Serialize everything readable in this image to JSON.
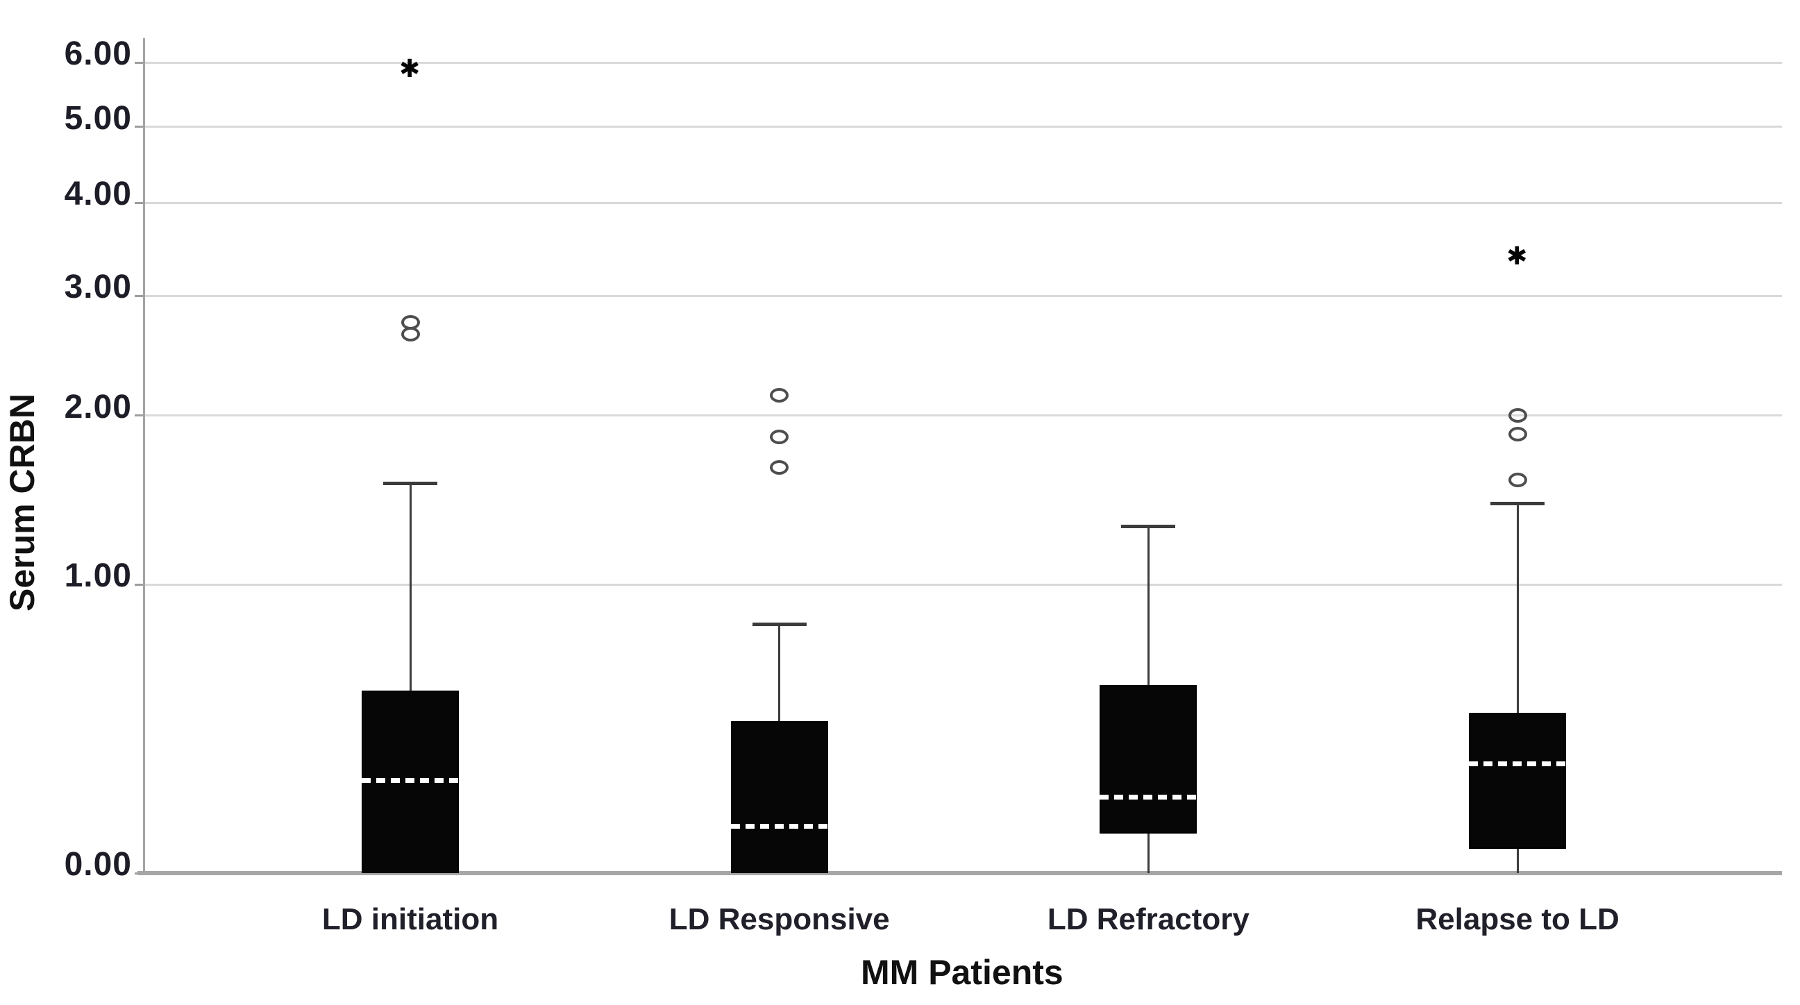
{
  "chart_data": {
    "type": "boxplot",
    "title": "",
    "xlabel": "MM Patients",
    "ylabel": "Serum CRBN",
    "y_axis": {
      "tick_labels": [
        "0.00",
        "1.00",
        "2.00",
        "3.00",
        "4.00",
        "5.00",
        "6.00"
      ],
      "tick_values": [
        0,
        1,
        2,
        3,
        4,
        5,
        6
      ],
      "range": [
        0,
        6.4
      ],
      "scale": "compressed-log1p",
      "grid": true
    },
    "categories": [
      "LD initiation",
      "LD Responsive",
      "LD Refractory",
      "Relapse to LD"
    ],
    "groups": [
      {
        "label": "LD initiation",
        "whisker_low": null,
        "q1": 0.0,
        "median": 0.25,
        "q3": 0.55,
        "whisker_high": 1.55,
        "outliers_circle": [
          2.65,
          2.75
        ],
        "outliers_star": [
          5.9
        ]
      },
      {
        "label": "LD Responsive",
        "whisker_low": null,
        "q1": 0.0,
        "median": 0.12,
        "q3": 0.44,
        "whisker_high": 0.82,
        "outliers_circle": [
          1.65,
          1.85,
          2.15
        ],
        "outliers_star": []
      },
      {
        "label": "LD Refractory",
        "whisker_low": 0.0,
        "q1": 0.1,
        "median": 0.2,
        "q3": 0.57,
        "whisker_high": 1.3,
        "outliers_circle": [],
        "outliers_star": []
      },
      {
        "label": "Relapse to LD",
        "whisker_low": 0.0,
        "q1": 0.06,
        "median": 0.3,
        "q3": 0.47,
        "whisker_high": 1.43,
        "outliers_circle": [
          1.57,
          1.87,
          2.0
        ],
        "outliers_star": [
          3.4
        ]
      }
    ],
    "colors": {
      "box_fill": "#060606",
      "median_dash": "#ffffff",
      "gridline": "#d9d9d9",
      "axis_line": "#a6a6a6",
      "whisker": "#3c3c3c",
      "outlier_stroke": "#4e4e4e",
      "text": "#1d1d27"
    },
    "legend": null
  }
}
